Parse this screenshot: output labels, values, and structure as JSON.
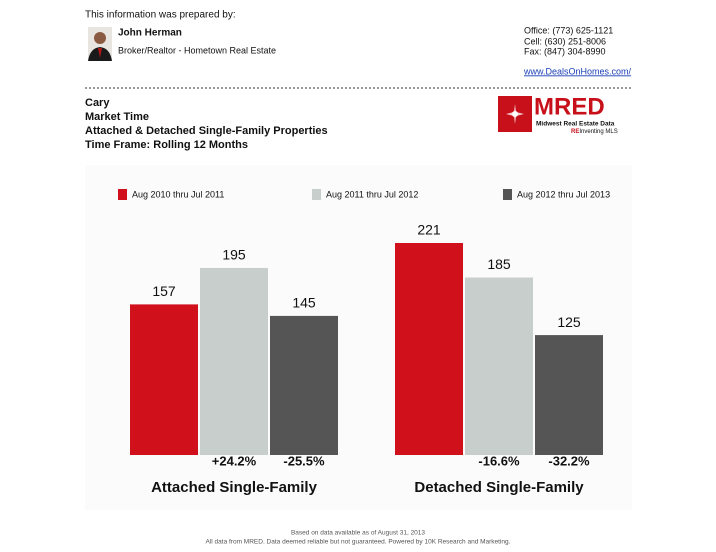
{
  "header": {
    "prepared_by": "This information was prepared by:",
    "agent_name": "John Herman",
    "agent_title": "Broker/Realtor - Hometown Real Estate",
    "office": "Office: (773) 625-1121",
    "cell": "Cell: (630) 251-8006",
    "fax": "Fax: (847) 304-8990",
    "website": "www.DealsOnHomes.com/"
  },
  "report": {
    "lines": [
      "Cary",
      "Market Time",
      "Attached & Detached Single-Family Properties",
      "Time Frame: Rolling 12 Months"
    ]
  },
  "logo": {
    "name": "MRED",
    "subtitle": "Midwest Real Estate Data",
    "tagline_re": "RE",
    "tagline_rest": "Inventing MLS"
  },
  "chart_data": {
    "type": "bar",
    "categories": [
      "Attached Single-Family",
      "Detached Single-Family"
    ],
    "series": [
      {
        "name": "Aug 2010 thru Jul 2011",
        "color": "#d0101b",
        "values": [
          157,
          221
        ]
      },
      {
        "name": "Aug 2011 thru Jul 2012",
        "color": "#c8cecc",
        "values": [
          195,
          185
        ],
        "change_labels": [
          "+24.2%",
          "-16.6%"
        ]
      },
      {
        "name": "Aug 2012 thru Jul 2013",
        "color": "#555555",
        "values": [
          145,
          125
        ],
        "change_labels": [
          "-25.5%",
          "-32.2%"
        ]
      }
    ]
  },
  "footer": {
    "lines": [
      "Based on data available as of August 31, 2013",
      "All data from MRED. Data deemed reliable but not guaranteed. Powered by 10K Research and Marketing."
    ]
  }
}
